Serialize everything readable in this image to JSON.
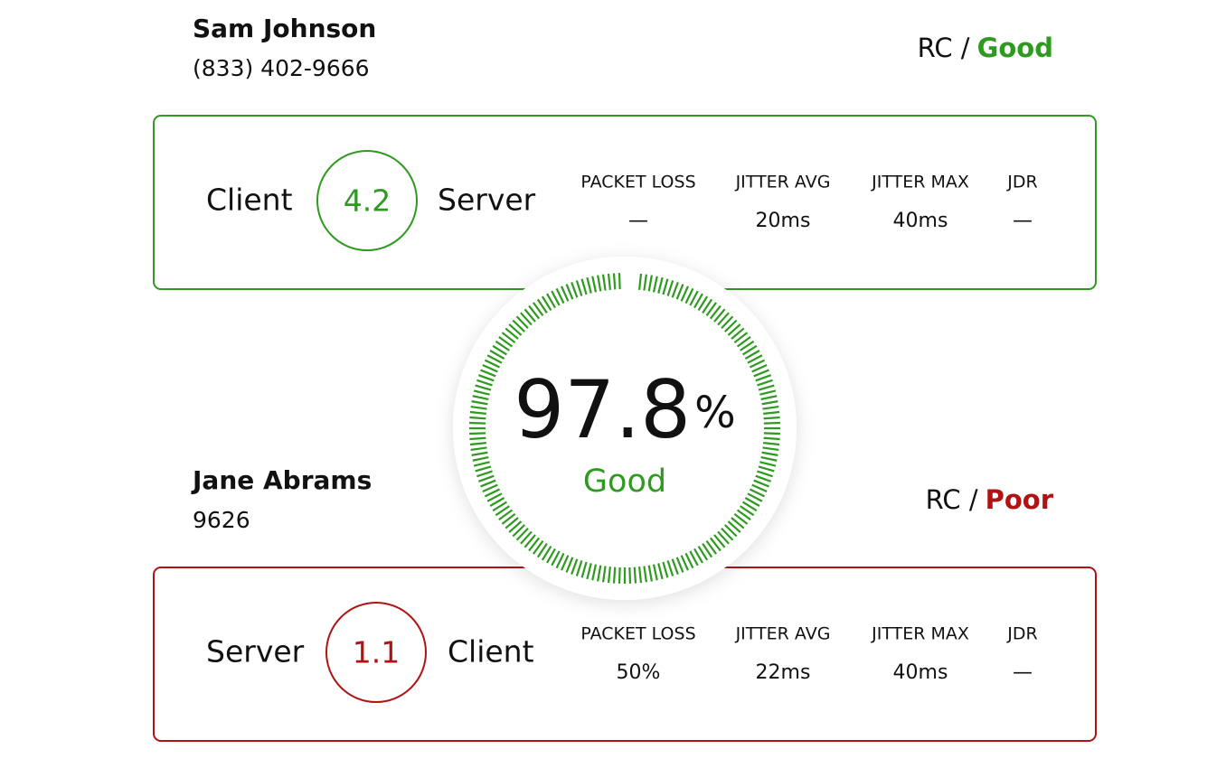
{
  "participants": [
    {
      "name": "Sam Johnson",
      "phone": "(833) 402-9666",
      "rc_label": "RC /",
      "status": "Good",
      "panel": {
        "left": "Client",
        "score": 4.2,
        "right": "Server",
        "metrics": [
          {
            "label": "PACKET LOSS",
            "value": "—"
          },
          {
            "label": "JITTER AVG",
            "value": "20ms"
          },
          {
            "label": "JITTER MAX",
            "value": "40ms"
          },
          {
            "label": "JDR",
            "value": "—"
          }
        ]
      }
    },
    {
      "name": "Jane Abrams",
      "phone": "9626",
      "rc_label": "RC /",
      "status": "Poor",
      "panel": {
        "left": "Server",
        "score": 1.1,
        "right": "Client",
        "metrics": [
          {
            "label": "PACKET LOSS",
            "value": "50%"
          },
          {
            "label": "JITTER AVG",
            "value": "22ms"
          },
          {
            "label": "JITTER MAX",
            "value": "40ms"
          },
          {
            "label": "JDR",
            "value": "—"
          }
        ]
      }
    }
  ],
  "gauge": {
    "value": 97.8,
    "unit": "%",
    "label": "Good"
  }
}
